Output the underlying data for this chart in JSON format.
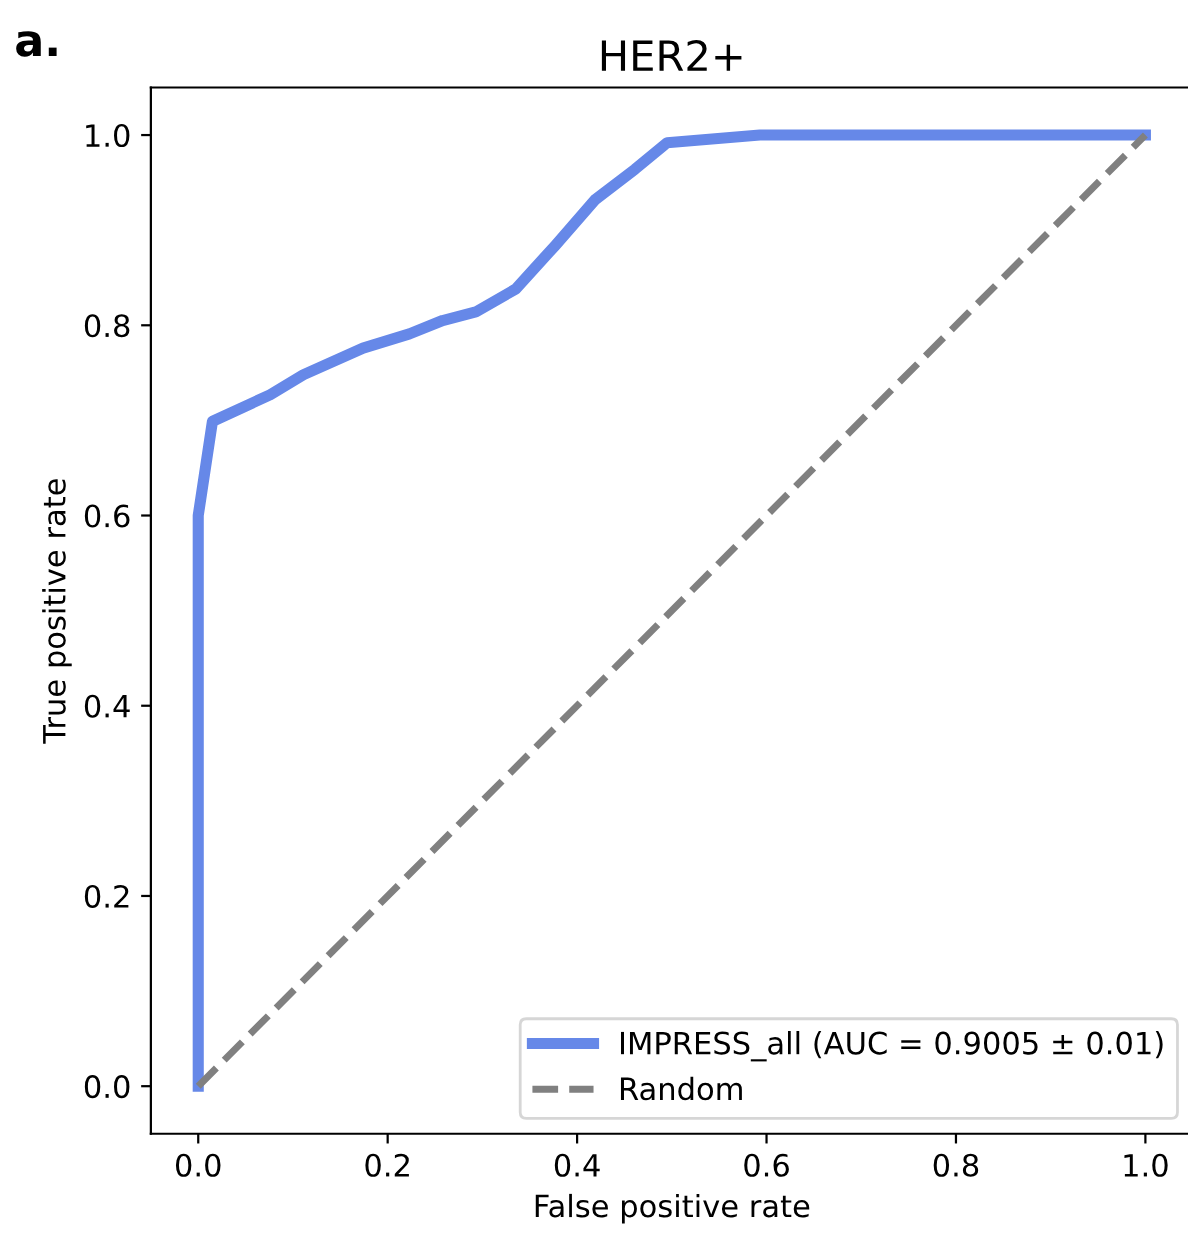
{
  "chart_data": {
    "type": "line",
    "title": "HER2+",
    "xlabel": "False positive rate",
    "ylabel": "True positive rate",
    "annotations": [
      "a."
    ],
    "series": [
      {
        "name": "IMPRESS_all (AUC = 0.9005 ± 0.01)",
        "color": "#6688e8",
        "line_style": "solid",
        "x": [
          0,
          0,
          0.015,
          0.076,
          0.111,
          0.174,
          0.223,
          0.258,
          0.293,
          0.335,
          0.377,
          0.419,
          0.461,
          0.495,
          0.593,
          1
        ],
        "values": [
          0,
          0.6,
          0.699,
          0.727,
          0.748,
          0.776,
          0.791,
          0.805,
          0.814,
          0.838,
          0.884,
          0.932,
          0.964,
          0.992,
          1,
          1
        ]
      },
      {
        "name": "Random",
        "color": "#808080",
        "line_style": "dashed",
        "x": [
          0,
          1
        ],
        "values": [
          0,
          1
        ]
      }
    ],
    "xlim": [
      -0.05,
      1.05
    ],
    "ylim": [
      -0.05,
      1.05
    ],
    "xticks": [
      {
        "value": 0,
        "label": "0.0"
      },
      0.2,
      0.4,
      0.6,
      0.8,
      {
        "value": 1,
        "label": "1.0"
      }
    ],
    "yticks": [
      {
        "value": 0,
        "label": "0.0"
      },
      0.2,
      0.4,
      0.6,
      0.8,
      {
        "value": 1,
        "label": "1.0"
      }
    ],
    "grid": false,
    "legend": "lower right"
  }
}
